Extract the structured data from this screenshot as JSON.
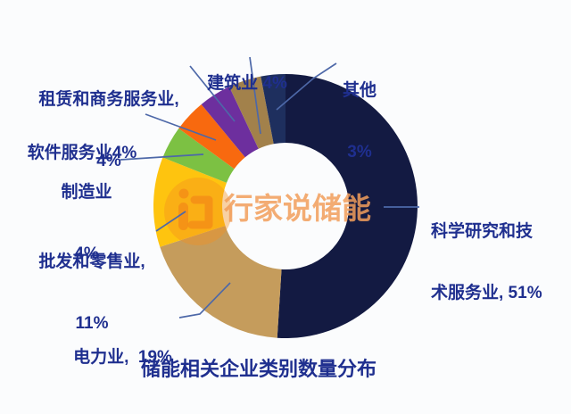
{
  "page": {
    "background": "#fbfcfd",
    "text_color": "#1f2f8f",
    "leader_line_color": "#4d68a8"
  },
  "chart_data": {
    "type": "pie",
    "subtype": "donut",
    "title": "储能相关企业类别数量分布",
    "unit": "%",
    "start_angle_deg": 0,
    "direction": "clockwise",
    "legend_position": "none",
    "categories": [
      "科学研究和技术服务业",
      "电力业",
      "批发和零售业",
      "制造业",
      "软件服务业",
      "租赁和商务服务业",
      "建筑业",
      "其他"
    ],
    "values": [
      51,
      19,
      11,
      4,
      4,
      4,
      4,
      3
    ],
    "colors": [
      "#131a42",
      "#c59c5c",
      "#fec40f",
      "#7cc143",
      "#f8690f",
      "#6d2f9e",
      "#a2814b",
      "#1e2f5e"
    ],
    "slices": [
      {
        "name": "科学研究和技术服务业",
        "value": 51,
        "color": "#131a42",
        "label": "科学研究和技术服务业, 51%",
        "label_lines": [
          "科学研究和技",
          "术服务业, 51%"
        ]
      },
      {
        "name": "电力业",
        "value": 19,
        "color": "#c59c5c",
        "label": "电力业, 19%",
        "label_lines": [
          "电力业,  19%"
        ]
      },
      {
        "name": "批发和零售业",
        "value": 11,
        "color": "#fec40f",
        "label": "批发和零售业, 11%",
        "label_lines": [
          "批发和零售业,",
          "11%"
        ]
      },
      {
        "name": "制造业",
        "value": 4,
        "color": "#7cc143",
        "label": "制造业 4%",
        "label_lines": [
          "制造业",
          "4%"
        ]
      },
      {
        "name": "软件服务业",
        "value": 4,
        "color": "#f8690f",
        "label": "软件服务业4%",
        "label_lines": [
          "软件服务业4%"
        ]
      },
      {
        "name": "租赁和商务服务业",
        "value": 4,
        "color": "#6d2f9e",
        "label": "租赁和商务服务业, 4%",
        "label_lines": [
          "租赁和商务服务业,",
          "4%"
        ]
      },
      {
        "name": "建筑业",
        "value": 4,
        "color": "#a2814b",
        "label": "建筑业 4%",
        "label_lines": [
          "建筑业 4%"
        ]
      },
      {
        "name": "其他",
        "value": 3,
        "color": "#1e2f5e",
        "label": "其他 3%",
        "label_lines": [
          "其他",
          "3%"
        ]
      }
    ]
  },
  "watermark": {
    "text": "行家说储能",
    "logo": "lightning-badge-icon",
    "color": "#f19e5a"
  }
}
